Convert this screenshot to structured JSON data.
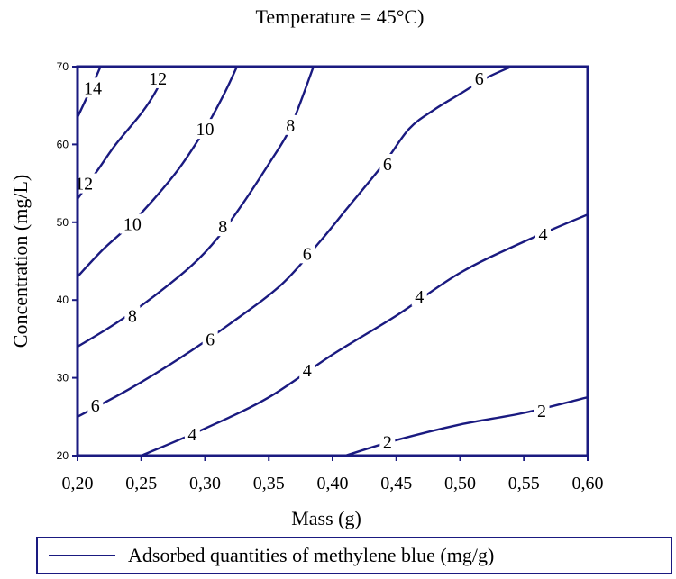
{
  "chart_data": {
    "type": "contour",
    "title": "Temperature = 45°C)",
    "xlabel": "Mass (g)",
    "ylabel": "Concentration (mg/L)",
    "xlim": [
      0.2,
      0.6
    ],
    "ylim": [
      20,
      70
    ],
    "x_ticks": [
      {
        "value": 0.2,
        "label": "0,20"
      },
      {
        "value": 0.25,
        "label": "0,25"
      },
      {
        "value": 0.3,
        "label": "0,30"
      },
      {
        "value": 0.35,
        "label": "0,35"
      },
      {
        "value": 0.4,
        "label": "0,40"
      },
      {
        "value": 0.45,
        "label": "0,45"
      },
      {
        "value": 0.5,
        "label": "0,50"
      },
      {
        "value": 0.55,
        "label": "0,55"
      },
      {
        "value": 0.6,
        "label": "0,60"
      }
    ],
    "y_ticks": [
      {
        "value": 20,
        "label": "20"
      },
      {
        "value": 30,
        "label": "30"
      },
      {
        "value": 40,
        "label": "40"
      },
      {
        "value": 50,
        "label": "50"
      },
      {
        "value": 60,
        "label": "60"
      },
      {
        "value": 70,
        "label": "70"
      }
    ],
    "legend": {
      "label": "Adsorbed quantities of methylene blue (mg/g)",
      "placement": "bottom"
    },
    "line_color": "#1a1a80",
    "contours": [
      {
        "level": "14",
        "points": [
          [
            0.2,
            63.5
          ],
          [
            0.21,
            67.0
          ],
          [
            0.218,
            70.0
          ]
        ],
        "labels": [
          {
            "text": "14",
            "x": 0.212,
            "y": 67.3
          }
        ]
      },
      {
        "level": "12",
        "points": [
          [
            0.2,
            53.0
          ],
          [
            0.215,
            56.5
          ],
          [
            0.23,
            60.0
          ],
          [
            0.25,
            64.0
          ],
          [
            0.262,
            67.0
          ],
          [
            0.27,
            70.0
          ]
        ],
        "labels": [
          {
            "text": "12",
            "x": 0.205,
            "y": 55.0
          },
          {
            "text": "12",
            "x": 0.263,
            "y": 68.5
          }
        ]
      },
      {
        "level": "10",
        "points": [
          [
            0.2,
            43.0
          ],
          [
            0.22,
            46.5
          ],
          [
            0.24,
            49.5
          ],
          [
            0.26,
            53.0
          ],
          [
            0.28,
            57.0
          ],
          [
            0.3,
            62.0
          ],
          [
            0.315,
            66.5
          ],
          [
            0.325,
            70.0
          ]
        ],
        "labels": [
          {
            "text": "10",
            "x": 0.243,
            "y": 49.8
          },
          {
            "text": "10",
            "x": 0.3,
            "y": 62.0
          }
        ]
      },
      {
        "level": "8",
        "points": [
          [
            0.2,
            34.0
          ],
          [
            0.23,
            37.0
          ],
          [
            0.26,
            40.5
          ],
          [
            0.29,
            44.5
          ],
          [
            0.31,
            48.0
          ],
          [
            0.33,
            52.5
          ],
          [
            0.35,
            57.5
          ],
          [
            0.365,
            61.5
          ],
          [
            0.375,
            65.5
          ],
          [
            0.385,
            70.0
          ]
        ],
        "labels": [
          {
            "text": "8",
            "x": 0.243,
            "y": 38.0
          },
          {
            "text": "8",
            "x": 0.314,
            "y": 49.5
          },
          {
            "text": "8",
            "x": 0.367,
            "y": 62.5
          }
        ]
      },
      {
        "level": "6",
        "points": [
          [
            0.2,
            25.0
          ],
          [
            0.24,
            28.5
          ],
          [
            0.28,
            32.5
          ],
          [
            0.32,
            37.0
          ],
          [
            0.36,
            42.0
          ],
          [
            0.39,
            47.5
          ],
          [
            0.41,
            51.5
          ],
          [
            0.44,
            57.5
          ],
          [
            0.46,
            62.0
          ],
          [
            0.48,
            64.5
          ],
          [
            0.5,
            66.5
          ],
          [
            0.52,
            68.5
          ],
          [
            0.54,
            70.0
          ]
        ],
        "labels": [
          {
            "text": "6",
            "x": 0.214,
            "y": 26.5
          },
          {
            "text": "6",
            "x": 0.304,
            "y": 35.0
          },
          {
            "text": "6",
            "x": 0.38,
            "y": 46.0
          },
          {
            "text": "6",
            "x": 0.443,
            "y": 57.5
          },
          {
            "text": "6",
            "x": 0.515,
            "y": 68.5
          }
        ]
      },
      {
        "level": "4",
        "points": [
          [
            0.25,
            20.0
          ],
          [
            0.3,
            23.5
          ],
          [
            0.35,
            27.5
          ],
          [
            0.4,
            33.0
          ],
          [
            0.45,
            38.0
          ],
          [
            0.5,
            43.5
          ],
          [
            0.55,
            47.5
          ],
          [
            0.6,
            51.0
          ]
        ],
        "labels": [
          {
            "text": "4",
            "x": 0.29,
            "y": 22.8
          },
          {
            "text": "4",
            "x": 0.38,
            "y": 31.0
          },
          {
            "text": "4",
            "x": 0.468,
            "y": 40.5
          },
          {
            "text": "4",
            "x": 0.565,
            "y": 48.5
          }
        ]
      },
      {
        "level": "2",
        "points": [
          [
            0.41,
            20.0
          ],
          [
            0.45,
            22.0
          ],
          [
            0.5,
            24.0
          ],
          [
            0.55,
            25.5
          ],
          [
            0.6,
            27.5
          ]
        ],
        "labels": [
          {
            "text": "2",
            "x": 0.443,
            "y": 21.8
          },
          {
            "text": "2",
            "x": 0.564,
            "y": 25.8
          }
        ]
      }
    ]
  }
}
